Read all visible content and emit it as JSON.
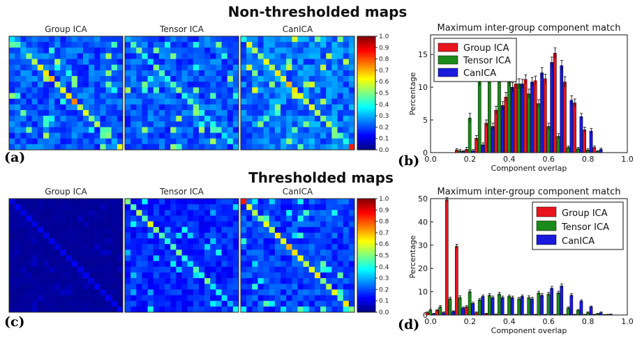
{
  "headings": {
    "top": "Non-thresholded maps",
    "bottom": "Thresholded maps"
  },
  "panel_labels": {
    "a": "(a)",
    "b": "(b)",
    "c": "(c)",
    "d": "(d)"
  },
  "colormap": "jet",
  "chart_data": [
    {
      "panel": "(a)",
      "type": "heatmap",
      "title": "Non-thresholded maps",
      "matrix_titles": [
        "Group ICA",
        "Tensor ICA",
        "CanICA"
      ],
      "size": 20,
      "colorbar_ticks": [
        "1.0",
        "0.9",
        "0.8",
        "0.7",
        "0.6",
        "0.5",
        "0.4",
        "0.3",
        "0.2",
        "0.1",
        "0.0"
      ],
      "clim": [
        0,
        1
      ],
      "diagonal": [
        [
          0.35,
          0.45,
          0.3,
          0.5,
          0.55,
          0.6,
          0.65,
          0.7,
          0.55,
          0.6,
          0.65,
          0.75,
          0.55,
          0.6,
          0.5,
          0.55,
          0.45,
          0.5,
          0.3,
          0.6
        ],
        [
          0.3,
          0.45,
          0.5,
          0.4,
          0.35,
          0.5,
          0.45,
          0.4,
          0.45,
          0.5,
          0.4,
          0.45,
          0.5,
          0.4,
          0.35,
          0.4,
          0.45,
          0.35,
          0.4,
          0.3
        ],
        [
          0.4,
          0.6,
          0.55,
          0.5,
          0.6,
          0.55,
          0.65,
          0.6,
          0.7,
          0.65,
          0.6,
          0.55,
          0.6,
          0.55,
          0.5,
          0.55,
          0.5,
          0.45,
          0.4,
          0.85
        ]
      ],
      "off_diagonal_max": [
        0.4,
        0.4,
        0.45
      ]
    },
    {
      "panel": "(b)",
      "type": "bar",
      "title": "Maximum inter-group component match",
      "xlabel": "Component overlap",
      "ylabel": "Percentage",
      "xlim": [
        0.0,
        1.0
      ],
      "ylim": [
        0,
        18
      ],
      "xticks": [
        "0.0",
        "0.2",
        "0.4",
        "0.6",
        "0.8",
        "1.0"
      ],
      "yticks": [
        "0",
        "5",
        "10",
        "15"
      ],
      "legend_position": "top-left",
      "bin_width": 0.05,
      "bin_centers": [
        0.15,
        0.2,
        0.25,
        0.3,
        0.35,
        0.4,
        0.45,
        0.5,
        0.55,
        0.6,
        0.65,
        0.7,
        0.75,
        0.8,
        0.85
      ],
      "series": [
        {
          "name": "Group ICA",
          "color": "#e8141e",
          "values": [
            0.4,
            0.5,
            2.2,
            4.5,
            6.5,
            8.5,
            10.5,
            11.2,
            11.0,
            11.3,
            15.2,
            10.8,
            7.6,
            3.5,
            0.8
          ],
          "errors": [
            0.2,
            0.3,
            0.4,
            0.5,
            0.6,
            0.7,
            0.7,
            0.7,
            0.7,
            0.7,
            0.8,
            0.8,
            0.6,
            0.4,
            0.2
          ]
        },
        {
          "name": "Tensor ICA",
          "color": "#1a8a1a",
          "values": [
            0.3,
            5.3,
            11.0,
            11.5,
            11.5,
            11.0,
            10.5,
            9.0,
            7.5,
            4.0,
            2.5,
            0.8,
            0.6,
            0.4,
            0.2
          ],
          "errors": [
            0.2,
            0.7,
            0.8,
            0.8,
            0.8,
            0.8,
            0.8,
            0.7,
            0.6,
            0.5,
            0.4,
            0.2,
            0.2,
            0.2,
            0.1
          ]
        },
        {
          "name": "CanICA",
          "color": "#1a1adc",
          "values": [
            0.2,
            0.3,
            1.2,
            4.0,
            7.2,
            10.0,
            10.5,
            10.8,
            12.2,
            13.8,
            13.3,
            8.0,
            5.5,
            3.3,
            0.5
          ],
          "errors": [
            0.1,
            0.2,
            0.3,
            0.5,
            0.6,
            0.7,
            0.7,
            0.7,
            0.8,
            0.8,
            0.8,
            0.7,
            0.5,
            0.4,
            0.2
          ]
        }
      ]
    },
    {
      "panel": "(c)",
      "type": "heatmap",
      "title": "Thresholded maps",
      "matrix_titles": [
        "Group ICA",
        "Tensor ICA",
        "CanICA"
      ],
      "size": 20,
      "colorbar_ticks": [
        "1.0",
        "0.9",
        "0.8",
        "0.7",
        "0.6",
        "0.5",
        "0.4",
        "0.3",
        "0.2",
        "0.1",
        "0.0"
      ],
      "clim": [
        0,
        1
      ],
      "diagonal": [
        [
          0.1,
          0.12,
          0.1,
          0.12,
          0.1,
          0.12,
          0.1,
          0.12,
          0.1,
          0.12,
          0.1,
          0.12,
          0.1,
          0.12,
          0.1,
          0.12,
          0.1,
          0.12,
          0.1,
          0.12
        ],
        [
          0.5,
          0.45,
          0.55,
          0.45,
          0.6,
          0.5,
          0.45,
          0.4,
          0.45,
          0.5,
          0.4,
          0.35,
          0.45,
          0.4,
          0.5,
          0.35,
          0.4,
          0.35,
          0.3,
          0.4
        ],
        [
          0.85,
          0.6,
          0.55,
          0.5,
          0.6,
          0.55,
          0.65,
          0.6,
          0.7,
          0.65,
          0.6,
          0.55,
          0.6,
          0.65,
          0.5,
          0.55,
          0.6,
          0.45,
          0.65,
          0.5
        ]
      ],
      "off_diagonal_max": [
        0.05,
        0.3,
        0.35
      ]
    },
    {
      "panel": "(d)",
      "type": "bar",
      "title": "Maximum inter-group component match",
      "xlabel": "Component overlap",
      "ylabel": "Percentage",
      "xlim": [
        0.0,
        1.0
      ],
      "ylim": [
        0,
        50
      ],
      "xticks": [
        "0.0",
        "0.2",
        "0.4",
        "0.6",
        "0.8",
        "1.0"
      ],
      "yticks": [
        "0",
        "10",
        "20",
        "30",
        "40",
        "50"
      ],
      "legend_position": "top-right",
      "bin_width": 0.05,
      "bin_centers": [
        0.0,
        0.05,
        0.1,
        0.15,
        0.2,
        0.25,
        0.3,
        0.35,
        0.4,
        0.45,
        0.5,
        0.55,
        0.6,
        0.65,
        0.7,
        0.75,
        0.8,
        0.85,
        0.9
      ],
      "series": [
        {
          "name": "Group ICA",
          "color": "#e8141e",
          "values": [
            1.0,
            2.0,
            49.5,
            29.5,
            3.5,
            1.0,
            0.5,
            0.3,
            0.2,
            0.2,
            0.2,
            0.2,
            0.2,
            0.2,
            0.2,
            0.2,
            0.2,
            0.2,
            0.1
          ],
          "errors": [
            0.3,
            0.4,
            0.9,
            0.9,
            0.5,
            0.3,
            0.2,
            0.1,
            0.1,
            0.1,
            0.1,
            0.1,
            0.1,
            0.1,
            0.1,
            0.1,
            0.1,
            0.1,
            0.1
          ]
        },
        {
          "name": "Tensor ICA",
          "color": "#1a8a1a",
          "values": [
            2.0,
            3.5,
            7.0,
            7.5,
            10.0,
            6.5,
            8.5,
            9.0,
            8.0,
            7.0,
            7.5,
            9.5,
            9.0,
            9.5,
            3.0,
            2.0,
            1.0,
            0.5,
            0.2
          ],
          "errors": [
            0.4,
            0.5,
            0.7,
            0.7,
            0.8,
            0.6,
            0.7,
            0.7,
            0.6,
            0.6,
            0.7,
            0.7,
            0.7,
            0.7,
            0.5,
            0.4,
            0.3,
            0.2,
            0.1
          ]
        },
        {
          "name": "CanICA",
          "color": "#1a1adc",
          "values": [
            0.5,
            1.0,
            1.5,
            3.0,
            5.0,
            8.0,
            7.5,
            7.5,
            7.5,
            8.0,
            7.0,
            8.5,
            11.5,
            12.5,
            8.5,
            6.0,
            3.5,
            1.0,
            0.3
          ],
          "errors": [
            0.2,
            0.3,
            0.3,
            0.4,
            0.5,
            0.6,
            0.6,
            0.6,
            0.6,
            0.6,
            0.6,
            0.7,
            0.8,
            0.8,
            0.7,
            0.5,
            0.4,
            0.3,
            0.1
          ]
        }
      ]
    }
  ]
}
